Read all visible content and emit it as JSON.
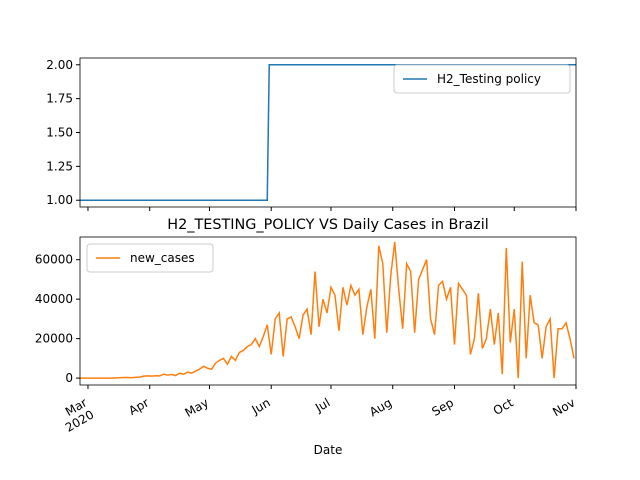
{
  "chart_data": [
    {
      "type": "line",
      "x": [
        "2020-02-26",
        "2020-05-30",
        "2020-05-31",
        "2020-11-01"
      ],
      "series": [
        {
          "name": "H2_Testing policy",
          "color": "#1f77b4",
          "values": [
            1,
            1,
            2,
            2
          ]
        }
      ],
      "xlim": [
        "2020-02-26",
        "2020-11-01"
      ],
      "ylim": [
        0.95,
        2.05
      ],
      "yticks": [
        {
          "value": 1,
          "label": "1.00"
        },
        {
          "value": 1.25,
          "label": "1.25"
        },
        {
          "value": 1.5,
          "label": "1.50"
        },
        {
          "value": 1.75,
          "label": "1.75"
        },
        {
          "value": 2,
          "label": "2.00"
        }
      ],
      "xticks": [
        "2020-03-01",
        "2020-04-01",
        "2020-05-01",
        "2020-06-01",
        "2020-07-01",
        "2020-08-01",
        "2020-09-01",
        "2020-10-01",
        "2020-11-01"
      ],
      "legend": "upper right"
    },
    {
      "type": "line",
      "title": "H2_TESTING_POLICY VS Daily Cases in Brazil",
      "x_label": "Date",
      "x": [
        "2020-02-26",
        "2020-02-28",
        "2020-03-01",
        "2020-03-03",
        "2020-03-05",
        "2020-03-07",
        "2020-03-09",
        "2020-03-11",
        "2020-03-13",
        "2020-03-15",
        "2020-03-17",
        "2020-03-19",
        "2020-03-21",
        "2020-03-23",
        "2020-03-25",
        "2020-03-27",
        "2020-03-29",
        "2020-03-31",
        "2020-04-02",
        "2020-04-04",
        "2020-04-06",
        "2020-04-08",
        "2020-04-10",
        "2020-04-12",
        "2020-04-14",
        "2020-04-16",
        "2020-04-18",
        "2020-04-20",
        "2020-04-22",
        "2020-04-24",
        "2020-04-26",
        "2020-04-28",
        "2020-04-30",
        "2020-05-02",
        "2020-05-04",
        "2020-05-06",
        "2020-05-08",
        "2020-05-10",
        "2020-05-12",
        "2020-05-14",
        "2020-05-16",
        "2020-05-18",
        "2020-05-20",
        "2020-05-22",
        "2020-05-24",
        "2020-05-26",
        "2020-05-28",
        "2020-05-30",
        "2020-06-01",
        "2020-06-03",
        "2020-06-05",
        "2020-06-07",
        "2020-06-09",
        "2020-06-11",
        "2020-06-13",
        "2020-06-15",
        "2020-06-17",
        "2020-06-19",
        "2020-06-21",
        "2020-06-23",
        "2020-06-25",
        "2020-06-27",
        "2020-06-29",
        "2020-07-01",
        "2020-07-03",
        "2020-07-05",
        "2020-07-07",
        "2020-07-09",
        "2020-07-11",
        "2020-07-13",
        "2020-07-15",
        "2020-07-17",
        "2020-07-19",
        "2020-07-21",
        "2020-07-23",
        "2020-07-25",
        "2020-07-27",
        "2020-07-29",
        "2020-07-31",
        "2020-08-02",
        "2020-08-04",
        "2020-08-06",
        "2020-08-08",
        "2020-08-10",
        "2020-08-12",
        "2020-08-14",
        "2020-08-16",
        "2020-08-18",
        "2020-08-20",
        "2020-08-22",
        "2020-08-24",
        "2020-08-26",
        "2020-08-28",
        "2020-08-30",
        "2020-09-01",
        "2020-09-03",
        "2020-09-05",
        "2020-09-07",
        "2020-09-09",
        "2020-09-11",
        "2020-09-13",
        "2020-09-15",
        "2020-09-17",
        "2020-09-19",
        "2020-09-21",
        "2020-09-23",
        "2020-09-25",
        "2020-09-27",
        "2020-09-29",
        "2020-10-01",
        "2020-10-03",
        "2020-10-05",
        "2020-10-07",
        "2020-10-09",
        "2020-10-11",
        "2020-10-13",
        "2020-10-15",
        "2020-10-17",
        "2020-10-19",
        "2020-10-21",
        "2020-10-23",
        "2020-10-25",
        "2020-10-27",
        "2020-10-29",
        "2020-10-31"
      ],
      "series": [
        {
          "name": "new_cases",
          "color": "#ff7f0e",
          "values": [
            0,
            0,
            0,
            0,
            0,
            0,
            0,
            0,
            0,
            100,
            200,
            300,
            300,
            200,
            400,
            500,
            1000,
            1100,
            1000,
            1200,
            1100,
            2000,
            1500,
            1800,
            1300,
            2500,
            2000,
            3000,
            2500,
            3500,
            4500,
            6000,
            5000,
            4500,
            7500,
            9000,
            10000,
            7000,
            11000,
            9000,
            13000,
            14000,
            16000,
            17000,
            20000,
            16000,
            21000,
            27000,
            12000,
            30000,
            33000,
            11000,
            30000,
            31000,
            26000,
            20000,
            32000,
            35000,
            22000,
            54000,
            26000,
            40000,
            33000,
            46000,
            42000,
            24000,
            46000,
            37000,
            47000,
            42000,
            45000,
            22000,
            36000,
            45000,
            20000,
            67000,
            58000,
            23000,
            52000,
            69000,
            45000,
            25000,
            58000,
            54000,
            23000,
            50000,
            55000,
            60000,
            30000,
            22000,
            47000,
            49000,
            40000,
            46000,
            17000,
            48000,
            45000,
            42000,
            12000,
            20000,
            43000,
            15000,
            20000,
            35000,
            17000,
            33000,
            2000,
            66000,
            18000,
            35000,
            0,
            59000,
            10000,
            42000,
            28000,
            27000,
            10000,
            26000,
            30000,
            0,
            25000,
            25000,
            28000,
            20000,
            10000
          ]
        }
      ],
      "xlim": [
        "2020-02-26",
        "2020-11-01"
      ],
      "ylim": [
        -3500,
        71500
      ],
      "yticks": [
        0,
        20000,
        40000,
        60000
      ],
      "xticks": [
        {
          "value": "2020-03-01",
          "label": "Mar\n2020"
        },
        {
          "value": "2020-04-01",
          "label": "Apr"
        },
        {
          "value": "2020-05-01",
          "label": "May"
        },
        {
          "value": "2020-06-01",
          "label": "Jun"
        },
        {
          "value": "2020-07-01",
          "label": "Jul"
        },
        {
          "value": "2020-08-01",
          "label": "Aug"
        },
        {
          "value": "2020-09-01",
          "label": "Sep"
        },
        {
          "value": "2020-10-01",
          "label": "Oct"
        },
        {
          "value": "2020-11-01",
          "label": "Nov"
        }
      ],
      "legend": "upper left"
    }
  ]
}
